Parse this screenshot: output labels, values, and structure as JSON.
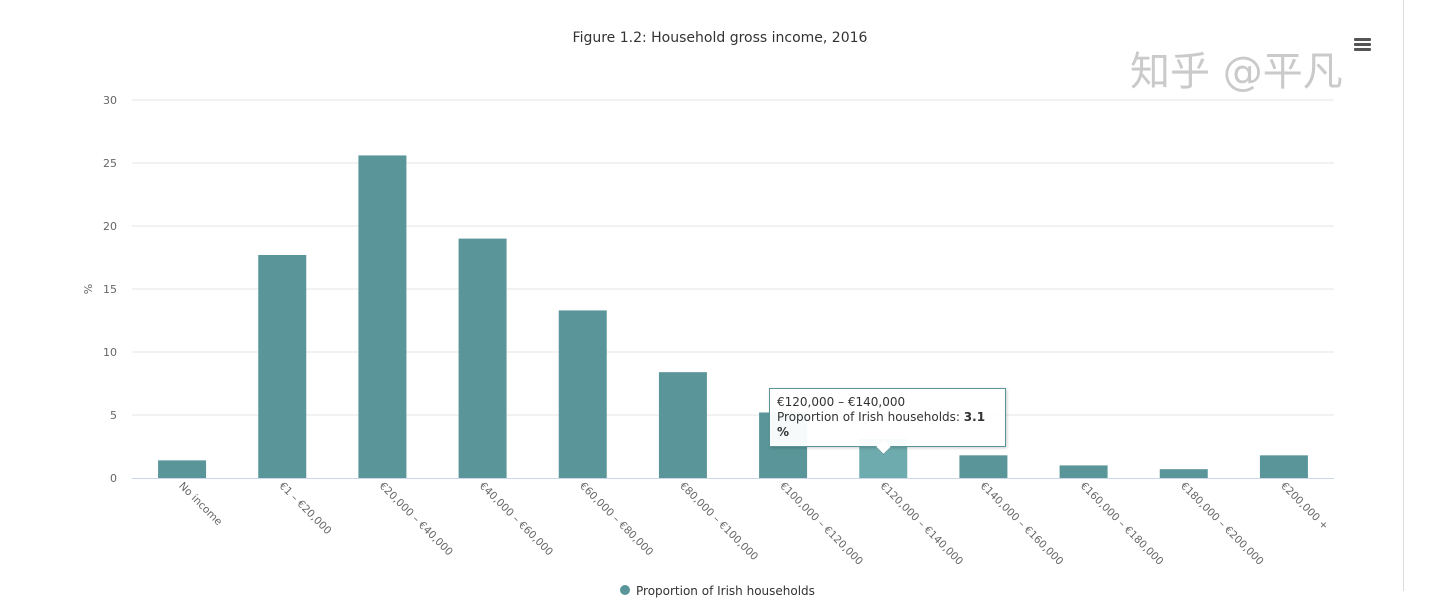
{
  "chart_data": {
    "type": "bar",
    "title": "Figure 1.2: Household gross income, 2016",
    "xlabel": "",
    "ylabel": "%",
    "ylim": [
      0,
      30
    ],
    "yticks": [
      0,
      5,
      10,
      15,
      20,
      25,
      30
    ],
    "grid": true,
    "color": "#5a9699",
    "hover_color": "#6eabae",
    "legend_position": "bottom",
    "categories": [
      "No income",
      "€1 – €20,000",
      "€20,000 – €40,000",
      "€40,000 – €60,000",
      "€60,000 – €80,000",
      "€80,000 – €100,000",
      "€100,000 – €120,000",
      "€120,000 – €140,000",
      "€140,000 – €160,000",
      "€160,000 – €180,000",
      "€180,000 – €200,000",
      "€200,000 +"
    ],
    "series": [
      {
        "name": "Proportion of Irish households",
        "values": [
          1.4,
          17.7,
          25.6,
          19.0,
          13.3,
          8.4,
          5.2,
          3.1,
          1.8,
          1.0,
          0.7,
          1.8
        ]
      }
    ]
  },
  "tooltip": {
    "category": "€120,000 – €140,000",
    "label": "Proportion of Irish households: ",
    "value": "3.1 %"
  },
  "watermark": "知乎 @平凡"
}
